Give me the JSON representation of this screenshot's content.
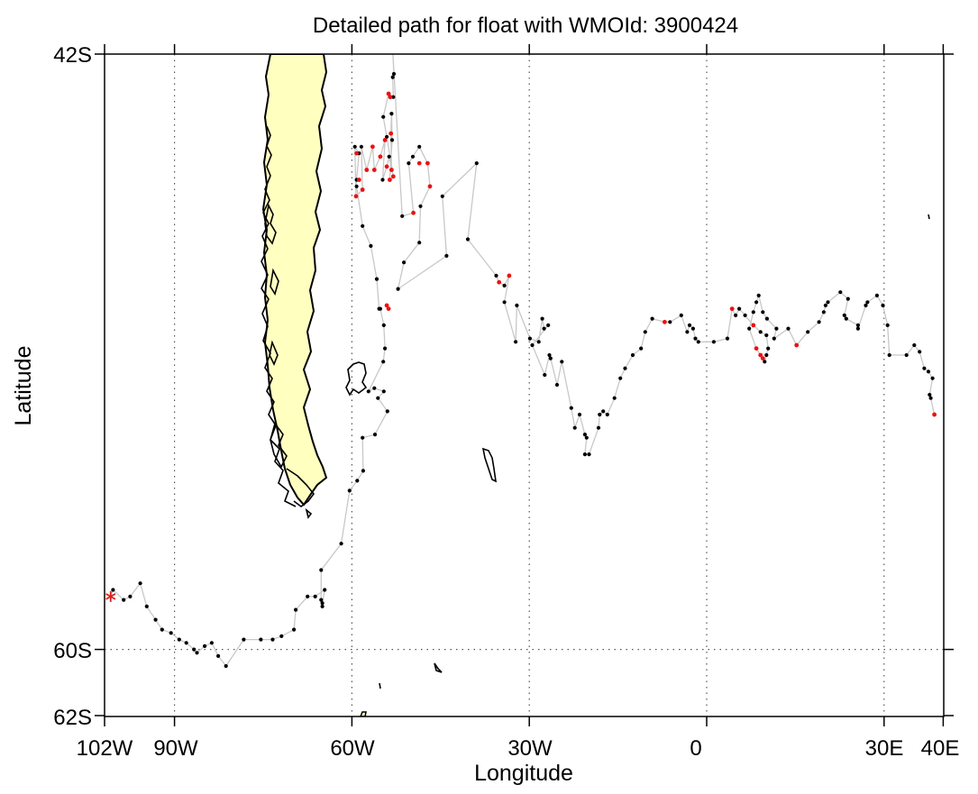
{
  "title": "Detailed path for float with WMOId: 3900424",
  "xlabel": "Longitude",
  "ylabel": "Latitude",
  "x_ticks": [
    "102W",
    "90W",
    "60W",
    "30W",
    "0",
    "30E",
    "40E"
  ],
  "y_ticks": [
    "42S",
    "60S",
    "62S"
  ],
  "map": {
    "lon_range": [
      -102,
      40
    ],
    "lat_range": [
      -62,
      -42
    ],
    "gridlines": "dotted",
    "land_color": "#ffffc0",
    "track_color": "#c8c8c8",
    "start_marker_color": "#dd2222",
    "point_colors": {
      "normal": "#000000",
      "flagged": "#ee1111"
    }
  },
  "chart_data": {
    "type": "scatter",
    "start_position": [
      -100.8,
      -58.4
    ],
    "track": [
      [
        -100.4,
        -58.2
      ],
      [
        -98.6,
        -58.5
      ],
      [
        -97.5,
        -58.4
      ],
      [
        -95.8,
        -58.0
      ],
      [
        -94.7,
        -58.7
      ],
      [
        -93.2,
        -59.1
      ],
      [
        -92.1,
        -59.4
      ],
      [
        -90.6,
        -59.5
      ],
      [
        -89.2,
        -59.7
      ],
      [
        -88.0,
        -59.8
      ],
      [
        -86.7,
        -60.0
      ],
      [
        -86.2,
        -60.1
      ],
      [
        -84.9,
        -59.9
      ],
      [
        -83.7,
        -59.8
      ],
      [
        -82.6,
        -60.2
      ],
      [
        -81.3,
        -60.5
      ],
      [
        -78.3,
        -59.7
      ],
      [
        -75.4,
        -59.7
      ],
      [
        -73.4,
        -59.7
      ],
      [
        -71.9,
        -59.6
      ],
      [
        -69.8,
        -59.4
      ],
      [
        -69.5,
        -58.8
      ],
      [
        -67.5,
        -58.4
      ],
      [
        -66.2,
        -58.4
      ],
      [
        -64.6,
        -58.2
      ],
      [
        -65.0,
        -58.6
      ],
      [
        -65.0,
        -58.7
      ],
      [
        -65.2,
        -58.5
      ],
      [
        -65.2,
        -57.6
      ],
      [
        -61.8,
        -56.8
      ],
      [
        -60.4,
        -55.2
      ],
      [
        -59.1,
        -54.9
      ],
      [
        -58.1,
        -54.6
      ],
      [
        -58.2,
        -53.6
      ],
      [
        -56.1,
        -53.5
      ],
      [
        -54.0,
        -52.8
      ],
      [
        -55.6,
        -52.4
      ],
      [
        -54.6,
        -52.2
      ],
      [
        -56.2,
        -52.1
      ],
      [
        -57.2,
        -52.2
      ],
      [
        -54.7,
        -51.3
      ],
      [
        -54.4,
        -50.9
      ],
      [
        -54.6,
        -50.2
      ],
      [
        -55.2,
        -49.7
      ],
      [
        -55.4,
        -49.7
      ],
      [
        -55.8,
        -48.8
      ],
      [
        -56.8,
        -47.8
      ],
      [
        -58.2,
        -47.2
      ],
      [
        -59.2,
        -46.0
      ],
      [
        -59.2,
        -45.8
      ],
      [
        -58.8,
        -45.0
      ],
      [
        -59.5,
        -44.8
      ],
      [
        -59.3,
        -46.3
      ],
      [
        -58.2,
        -46.1
      ],
      [
        -58.4,
        -44.8
      ],
      [
        -57.5,
        -45.5
      ],
      [
        -56.5,
        -44.8
      ],
      [
        -56.2,
        -45.5
      ],
      [
        -55.2,
        -45.1
      ],
      [
        -54.4,
        -44.6
      ],
      [
        -54.8,
        -45.8
      ],
      [
        -54.1,
        -45.4
      ],
      [
        -53.7,
        -45.1
      ],
      [
        -53.3,
        -45.5
      ],
      [
        -53.4,
        -44.4
      ],
      [
        -53.3,
        -43.8
      ],
      [
        -53.2,
        -44.6
      ],
      [
        -53.6,
        -45.8
      ],
      [
        -53.0,
        -45.7
      ],
      [
        -54.1,
        -44.5
      ],
      [
        -54.7,
        -43.9
      ],
      [
        -53.8,
        -43.2
      ],
      [
        -53.5,
        -43.3
      ],
      [
        -53.0,
        -43.3
      ],
      [
        -53.1,
        -42.7
      ],
      [
        -52.9,
        -42.6
      ],
      [
        -53.1,
        -41.9
      ],
      [
        -51.5,
        -46.9
      ],
      [
        -49.6,
        -46.8
      ],
      [
        -50.4,
        -45.3
      ],
      [
        -49.7,
        -45.1
      ],
      [
        -48.6,
        -44.8
      ],
      [
        -47.2,
        -45.3
      ],
      [
        -46.8,
        -46.0
      ],
      [
        -48.4,
        -46.6
      ],
      [
        -48.6,
        -47.7
      ],
      [
        -51.2,
        -48.3
      ],
      [
        -52.2,
        -49.1
      ],
      [
        -44.0,
        -48.1
      ],
      [
        -44.7,
        -46.3
      ],
      [
        -38.9,
        -45.3
      ],
      [
        -40.4,
        -47.6
      ],
      [
        -35.6,
        -48.7
      ],
      [
        -35.1,
        -48.9
      ],
      [
        -34.2,
        -49.0
      ],
      [
        -33.4,
        -48.7
      ],
      [
        -34.2,
        -49.5
      ],
      [
        -32.3,
        -50.7
      ],
      [
        -32.1,
        -49.6
      ],
      [
        -29.9,
        -50.6
      ],
      [
        -28.4,
        -50.7
      ],
      [
        -27.8,
        -50.0
      ],
      [
        -27.5,
        -50.3
      ],
      [
        -26.8,
        -50.2
      ],
      [
        -29.5,
        -50.8
      ],
      [
        -27.4,
        -51.7
      ],
      [
        -26.6,
        -51.1
      ],
      [
        -26.4,
        -51.2
      ],
      [
        -25.3,
        -52.0
      ],
      [
        -24.5,
        -51.3
      ],
      [
        -22.9,
        -52.7
      ],
      [
        -22.3,
        -53.3
      ],
      [
        -21.5,
        -52.9
      ],
      [
        -20.6,
        -53.5
      ],
      [
        -20.3,
        -53.6
      ],
      [
        -20.6,
        -54.1
      ],
      [
        -19.9,
        -54.1
      ],
      [
        -18.3,
        -53.3
      ],
      [
        -18.1,
        -52.9
      ],
      [
        -17.5,
        -52.8
      ],
      [
        -16.8,
        -52.9
      ],
      [
        -15.6,
        -52.4
      ],
      [
        -14.6,
        -51.8
      ],
      [
        -13.8,
        -51.5
      ],
      [
        -12.5,
        -51.1
      ],
      [
        -11.1,
        -50.9
      ],
      [
        -10.4,
        -50.4
      ],
      [
        -9.2,
        -50.0
      ],
      [
        -7.1,
        -50.1
      ],
      [
        -6.2,
        -50.1
      ],
      [
        -4.3,
        -49.9
      ],
      [
        -3.3,
        -50.4
      ],
      [
        -2.9,
        -50.2
      ],
      [
        -2.3,
        -50.3
      ],
      [
        -1.9,
        -50.6
      ],
      [
        -1.4,
        -50.7
      ],
      [
        1.2,
        -50.7
      ],
      [
        3.5,
        -50.6
      ],
      [
        4.3,
        -49.7
      ],
      [
        4.9,
        -49.9
      ],
      [
        5.5,
        -49.7
      ],
      [
        6.5,
        -49.9
      ],
      [
        7.9,
        -50.2
      ],
      [
        9.1,
        -50.4
      ],
      [
        10.1,
        -50.5
      ],
      [
        10.4,
        -50.9
      ],
      [
        10.1,
        -51.1
      ],
      [
        9.8,
        -51.3
      ],
      [
        8.4,
        -50.9
      ],
      [
        7.2,
        -50.3
      ],
      [
        7.9,
        -49.8
      ],
      [
        8.4,
        -49.5
      ],
      [
        8.8,
        -49.3
      ],
      [
        9.5,
        -49.8
      ],
      [
        10.2,
        -50.0
      ],
      [
        11.8,
        -50.3
      ],
      [
        11.4,
        -50.6
      ],
      [
        13.8,
        -50.3
      ],
      [
        15.2,
        -50.8
      ],
      [
        17.1,
        -50.4
      ],
      [
        19.0,
        -50.1
      ],
      [
        19.8,
        -49.8
      ],
      [
        20.1,
        -49.6
      ],
      [
        20.5,
        -49.5
      ],
      [
        22.6,
        -49.2
      ],
      [
        23.9,
        -49.4
      ],
      [
        23.3,
        -49.9
      ],
      [
        23.6,
        -50.0
      ],
      [
        25.6,
        -50.2
      ],
      [
        25.6,
        -50.3
      ],
      [
        26.9,
        -49.6
      ],
      [
        27.2,
        -49.5
      ],
      [
        28.8,
        -49.3
      ],
      [
        29.8,
        -49.6
      ],
      [
        30.6,
        -50.2
      ],
      [
        30.9,
        -51.1
      ],
      [
        33.8,
        -51.1
      ],
      [
        35.1,
        -50.8
      ],
      [
        36.0,
        -51.0
      ],
      [
        36.8,
        -51.5
      ],
      [
        37.5,
        -51.6
      ],
      [
        38.2,
        -51.8
      ],
      [
        37.7,
        -52.3
      ],
      [
        37.9,
        -52.4
      ],
      [
        38.5,
        -52.9
      ]
    ],
    "flagged_points": [
      [
        -59.2,
        -45.0
      ],
      [
        -58.8,
        -45.8
      ],
      [
        -58.2,
        -46.1
      ],
      [
        -57.5,
        -45.5
      ],
      [
        -56.5,
        -44.8
      ],
      [
        -56.2,
        -45.5
      ],
      [
        -55.2,
        -45.1
      ],
      [
        -54.1,
        -45.4
      ],
      [
        -53.3,
        -45.5
      ],
      [
        -53.4,
        -44.4
      ],
      [
        -53.6,
        -45.8
      ],
      [
        -53.0,
        -45.7
      ],
      [
        -54.4,
        -44.6
      ],
      [
        -53.8,
        -43.2
      ],
      [
        -53.5,
        -43.3
      ],
      [
        -49.6,
        -46.8
      ],
      [
        -48.6,
        -45.3
      ],
      [
        -47.2,
        -45.3
      ],
      [
        -46.8,
        -46.0
      ],
      [
        -59.3,
        -46.3
      ],
      [
        -54.1,
        -49.6
      ],
      [
        -53.8,
        -49.7
      ],
      [
        -35.1,
        -48.9
      ],
      [
        -33.4,
        -48.7
      ],
      [
        -7.1,
        -50.1
      ],
      [
        4.3,
        -49.7
      ],
      [
        7.9,
        -50.2
      ],
      [
        8.4,
        -50.9
      ],
      [
        9.1,
        -51.1
      ],
      [
        9.5,
        -51.2
      ],
      [
        15.2,
        -50.8
      ],
      [
        38.5,
        -52.9
      ]
    ]
  }
}
